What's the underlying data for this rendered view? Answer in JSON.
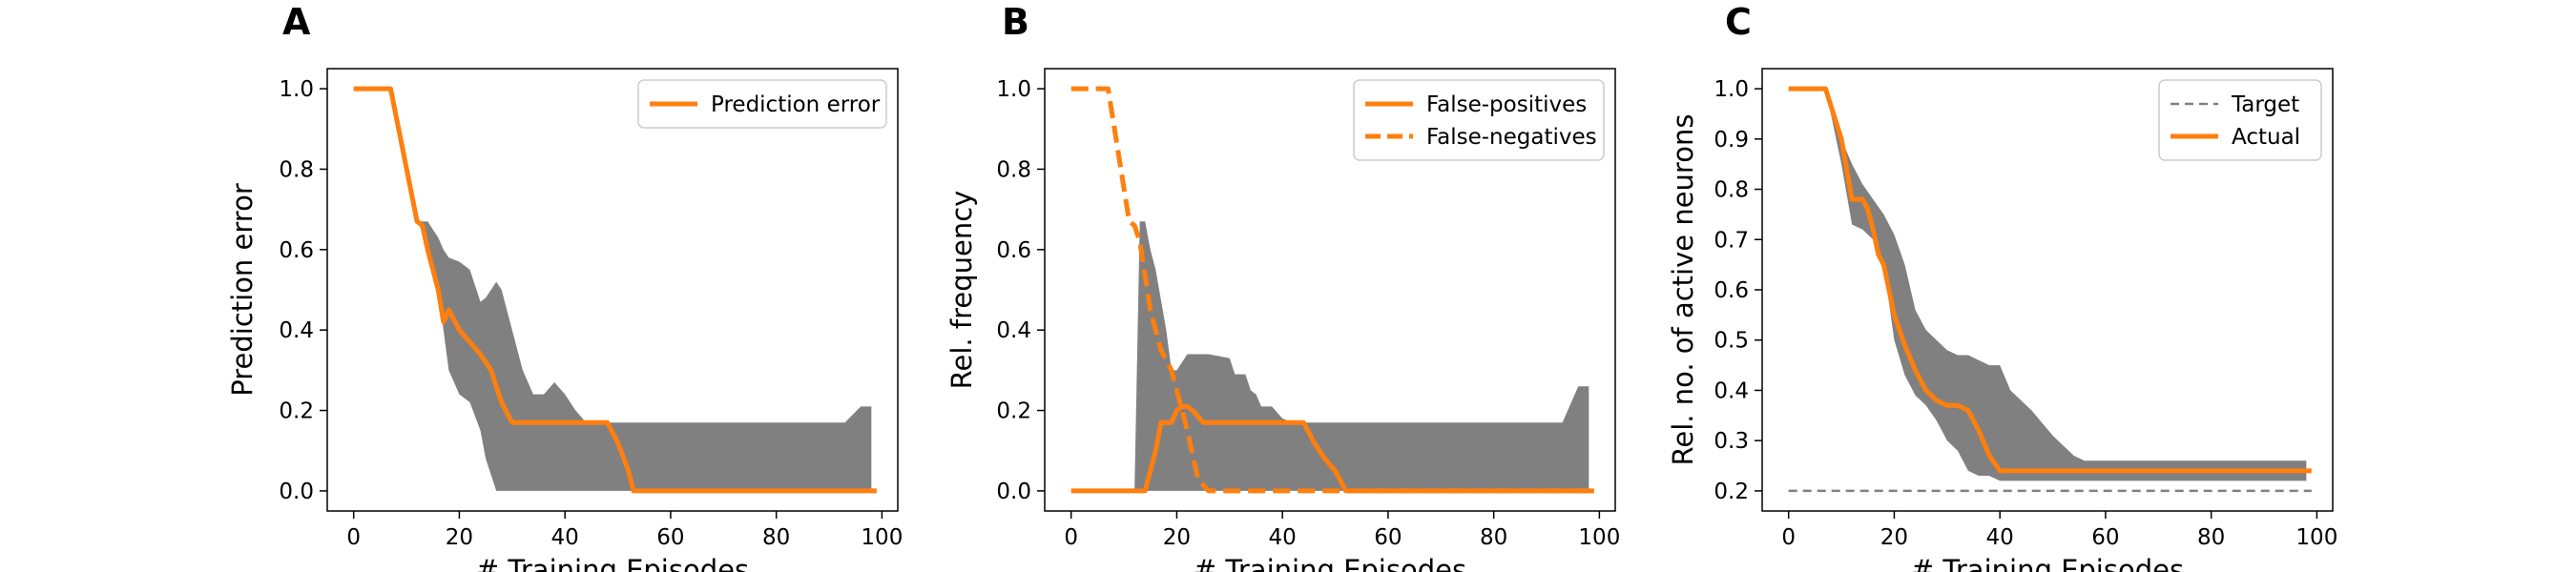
{
  "chart_data": [
    {
      "panel": "A",
      "type": "line",
      "xlabel": "# Training Episodes",
      "ylabel": "Prediction error",
      "xlim": [
        -5,
        103
      ],
      "ylim": [
        -0.05,
        1.05
      ],
      "xticks": [
        0,
        20,
        40,
        60,
        80,
        100
      ],
      "yticks": [
        0.0,
        0.2,
        0.4,
        0.6,
        0.8,
        1.0
      ],
      "ytick_labels": [
        "0.0",
        "0.2",
        "0.4",
        "0.6",
        "0.8",
        "1.0"
      ],
      "grid": false,
      "legend_placement": "top-right",
      "series": [
        {
          "name": "Prediction error",
          "style": "solid",
          "color": "#ff7f0e",
          "x": [
            0,
            7,
            12,
            13,
            14,
            16,
            17,
            18,
            20,
            22,
            24,
            26,
            28,
            30,
            40,
            48,
            50,
            52,
            53,
            99
          ],
          "y": [
            1.0,
            1.0,
            0.67,
            0.66,
            0.6,
            0.5,
            0.42,
            0.45,
            0.4,
            0.37,
            0.34,
            0.3,
            0.22,
            0.17,
            0.17,
            0.17,
            0.12,
            0.05,
            0.0,
            0.0
          ]
        }
      ],
      "band": {
        "color": "#808080",
        "x": [
          0,
          7,
          12,
          14,
          16,
          17,
          18,
          20,
          22,
          24,
          25,
          26,
          27,
          28,
          30,
          32,
          34,
          36,
          38,
          40,
          42,
          44,
          46,
          48,
          52,
          54,
          60,
          80,
          93,
          96,
          98
        ],
        "upper": [
          1.0,
          1.0,
          0.67,
          0.67,
          0.63,
          0.6,
          0.58,
          0.57,
          0.55,
          0.47,
          0.48,
          0.5,
          0.52,
          0.5,
          0.4,
          0.3,
          0.24,
          0.24,
          0.27,
          0.24,
          0.2,
          0.17,
          0.17,
          0.17,
          0.17,
          0.17,
          0.17,
          0.17,
          0.17,
          0.21,
          0.21
        ],
        "lower": [
          1.0,
          1.0,
          0.67,
          0.62,
          0.5,
          0.4,
          0.3,
          0.24,
          0.22,
          0.15,
          0.08,
          0.04,
          0.0,
          0.0,
          0.0,
          0.0,
          0.0,
          0.0,
          0.0,
          0.0,
          0.0,
          0.0,
          0.0,
          0.0,
          0.0,
          0.0,
          0.0,
          0.0,
          0.0,
          0.0,
          0.0
        ]
      }
    },
    {
      "panel": "B",
      "type": "line",
      "xlabel": "# Training Episodes",
      "ylabel": "Rel. frequency",
      "xlim": [
        -5,
        103
      ],
      "ylim": [
        -0.05,
        1.05
      ],
      "xticks": [
        0,
        20,
        40,
        60,
        80,
        100
      ],
      "yticks": [
        0.0,
        0.2,
        0.4,
        0.6,
        0.8,
        1.0
      ],
      "ytick_labels": [
        "0.0",
        "0.2",
        "0.4",
        "0.6",
        "0.8",
        "1.0"
      ],
      "grid": false,
      "legend_placement": "top-right",
      "series": [
        {
          "name": "False-positives",
          "style": "solid",
          "color": "#ff7f0e",
          "x": [
            0,
            14,
            16,
            17,
            19,
            20,
            21,
            22,
            23,
            25,
            26,
            30,
            40,
            44,
            46,
            48,
            50,
            52,
            53,
            99
          ],
          "y": [
            0.0,
            0.0,
            0.1,
            0.17,
            0.17,
            0.2,
            0.21,
            0.21,
            0.2,
            0.17,
            0.17,
            0.17,
            0.17,
            0.17,
            0.12,
            0.08,
            0.05,
            0.0,
            0.0,
            0.0
          ]
        },
        {
          "name": "False-negatives",
          "style": "dashed",
          "color": "#ff7f0e",
          "x": [
            0,
            7,
            11,
            12,
            13,
            15,
            17,
            19,
            20,
            22,
            24,
            26,
            28,
            35,
            40,
            45,
            52,
            99
          ],
          "y": [
            1.0,
            1.0,
            0.67,
            0.66,
            0.62,
            0.45,
            0.35,
            0.3,
            0.25,
            0.15,
            0.03,
            0.0,
            0.0,
            0.0,
            0.0,
            0.0,
            0.0,
            0.0
          ]
        }
      ],
      "band": {
        "color": "#808080",
        "x": [
          0,
          12,
          13,
          14,
          15,
          16,
          18,
          19,
          20,
          22,
          24,
          26,
          30,
          31,
          33,
          34,
          35,
          36,
          38,
          40,
          42,
          44,
          46,
          48,
          52,
          60,
          80,
          93,
          96,
          98
        ],
        "upper": [
          0.0,
          0.0,
          0.67,
          0.67,
          0.6,
          0.55,
          0.4,
          0.3,
          0.3,
          0.34,
          0.34,
          0.34,
          0.33,
          0.29,
          0.29,
          0.25,
          0.24,
          0.21,
          0.21,
          0.18,
          0.17,
          0.17,
          0.17,
          0.17,
          0.17,
          0.17,
          0.17,
          0.17,
          0.26,
          0.26
        ],
        "lower": [
          0.0,
          0.0,
          0.0,
          0.0,
          0.0,
          0.0,
          0.0,
          0.0,
          0.0,
          0.0,
          0.0,
          0.0,
          0.0,
          0.0,
          0.0,
          0.0,
          0.0,
          0.0,
          0.0,
          0.0,
          0.0,
          0.0,
          0.0,
          0.0,
          0.0,
          0.0,
          0.0,
          0.0,
          0.0,
          0.0
        ]
      }
    },
    {
      "panel": "C",
      "type": "line",
      "xlabel": "# Training Episodes",
      "ylabel": "Rel. no. of active neurons",
      "xlim": [
        -5,
        103
      ],
      "ylim": [
        0.16,
        1.04
      ],
      "xticks": [
        0,
        20,
        40,
        60,
        80,
        100
      ],
      "yticks": [
        0.2,
        0.3,
        0.4,
        0.5,
        0.6,
        0.7,
        0.8,
        0.9,
        1.0
      ],
      "ytick_labels": [
        "0.2",
        "0.3",
        "0.4",
        "0.5",
        "0.6",
        "0.7",
        "0.8",
        "0.9",
        "1.0"
      ],
      "grid": false,
      "legend_placement": "top-right",
      "series": [
        {
          "name": "Target",
          "style": "dashed",
          "color": "#808080",
          "x": [
            0,
            99
          ],
          "y": [
            0.2,
            0.2
          ]
        },
        {
          "name": "Actual",
          "style": "solid",
          "color": "#ff7f0e",
          "x": [
            0,
            7,
            10,
            12,
            13,
            14,
            15,
            16,
            17,
            18,
            19,
            20,
            22,
            24,
            26,
            28,
            30,
            32,
            34,
            36,
            38,
            40,
            42,
            99
          ],
          "y": [
            1.0,
            1.0,
            0.9,
            0.78,
            0.78,
            0.78,
            0.76,
            0.72,
            0.67,
            0.65,
            0.6,
            0.55,
            0.49,
            0.44,
            0.4,
            0.38,
            0.37,
            0.37,
            0.36,
            0.32,
            0.27,
            0.24,
            0.24,
            0.24
          ]
        }
      ],
      "band": {
        "color": "#808080",
        "x": [
          0,
          7,
          10,
          12,
          14,
          16,
          18,
          20,
          22,
          24,
          26,
          28,
          30,
          32,
          34,
          36,
          38,
          40,
          42,
          44,
          46,
          50,
          54,
          56,
          60,
          80,
          98
        ],
        "upper": [
          1.0,
          1.0,
          0.9,
          0.85,
          0.81,
          0.78,
          0.75,
          0.71,
          0.65,
          0.56,
          0.52,
          0.5,
          0.48,
          0.47,
          0.47,
          0.46,
          0.45,
          0.45,
          0.4,
          0.38,
          0.36,
          0.31,
          0.27,
          0.26,
          0.26,
          0.26,
          0.26
        ],
        "lower": [
          1.0,
          1.0,
          0.85,
          0.73,
          0.72,
          0.7,
          0.65,
          0.5,
          0.43,
          0.39,
          0.37,
          0.34,
          0.3,
          0.28,
          0.24,
          0.23,
          0.23,
          0.22,
          0.22,
          0.22,
          0.22,
          0.22,
          0.22,
          0.22,
          0.22,
          0.22,
          0.22
        ]
      }
    }
  ]
}
